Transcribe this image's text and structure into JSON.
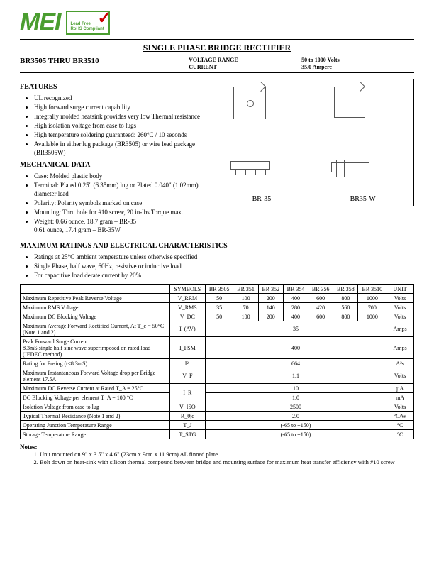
{
  "logo_text": "MEI",
  "badge_line1": "Lead Free",
  "badge_line2": "RoHS Compliant",
  "title": "SINGLE PHASE BRIDGE RECTIFIER",
  "partnum": "BR3505   THRU   BR3510",
  "range_labels": {
    "l1": "VOLTAGE RANGE",
    "l2": "CURRENT"
  },
  "range_values": {
    "v1": "50 to 1000 Volts",
    "v2": "35.0 Ampere"
  },
  "features_hdr": "FEATURES",
  "features": [
    "UL recognized",
    "High forward surge current capability",
    "Integrally molded heatsink provides very low Thermal resistance",
    "High isolation voltage from case to lugs",
    "High temperature soldering guaranteed: 260°C / 10 seconds",
    "Available in either lug package (BR3505) or wire lead package (BR3505W)"
  ],
  "mech_hdr": "MECHANICAL DATA",
  "mech": [
    "Case:  Molded plastic body",
    "Terminal:  Plated 0.25\" (6.35mm) lug or Plated 0.040\" (1.02mm) diameter lead",
    "Polarity:  Polarity symbols marked on case",
    "Mounting:  Thru hole for #10 screw, 20 in-lbs Torque max.",
    "Weight:  0.66 ounce, 18.7 gram – BR-35\n              0.61 ounce, 17.4 gram – BR-35W"
  ],
  "pkg_labels": {
    "a": "BR-35",
    "b": "BR35-W"
  },
  "max_hdr": "MAXIMUM RATINGS AND ELECTRICAL CHARACTERISTICS",
  "max_notes": [
    "Ratings at 25°C ambient temperature unless otherwise specified",
    "Single Phase, half wave, 60Hz, resistive or inductive load",
    "For capacitive load derate current by 20%"
  ],
  "table": {
    "head_symbols": "SYMBOLS",
    "head_parts": [
      "BR 3505",
      "BR 351",
      "BR 352",
      "BR 354",
      "BR 356",
      "BR 358",
      "BR 3510"
    ],
    "head_unit": "UNIT",
    "rows": [
      {
        "label": "Maximum Repetitive Peak Reverse Voltage",
        "sym": "V_RRM",
        "vals": [
          "50",
          "100",
          "200",
          "400",
          "600",
          "800",
          "1000"
        ],
        "unit": "Volts"
      },
      {
        "label": "Maximum RMS Voltage",
        "sym": "V_RMS",
        "vals": [
          "35",
          "70",
          "140",
          "280",
          "420",
          "560",
          "700"
        ],
        "unit": "Volts"
      },
      {
        "label": "Maximum DC Blocking Voltage",
        "sym": "V_DC",
        "vals": [
          "50",
          "100",
          "200",
          "400",
          "600",
          "800",
          "1000"
        ],
        "unit": "Volts"
      },
      {
        "label": "Maximum Average Forward Rectified Current, At T_c = 50°C (Note 1 and 2)",
        "sym": "I_(AV)",
        "span": "35",
        "unit": "Amps"
      },
      {
        "label": "Peak Forward Surge Current\n8.3mS single half sine wave superimposed on rated load (JEDEC method)",
        "sym": "I_FSM",
        "span": "400",
        "unit": "Amps"
      },
      {
        "label": "Rating for Fusing (t<8.3mS)",
        "sym": "I²t",
        "span": "664",
        "unit": "A²s"
      },
      {
        "label": "Maximum Instantaneous Forward Voltage drop per Bridge element 17.5A",
        "sym": "V_F",
        "span": "1.1",
        "unit": "Volts"
      },
      {
        "label": "Maximum DC Reverse Current at Rated        T_A = 25°C",
        "sym": "I_R",
        "span": "10",
        "unit": "µA",
        "rowspan_sym": 2
      },
      {
        "label": "DC Blocking Voltage per element                   T_A = 100 °C",
        "span": "1.0",
        "unit": "mA",
        "skip_sym": true
      },
      {
        "label": "Isolation Voltage from case to lug",
        "sym": "V_ISO",
        "span": "2500",
        "unit": "Volts"
      },
      {
        "label": "Typical Thermal Resistance (Note 1 and 2)",
        "sym": "R_θjc",
        "span": "2.0",
        "unit": "°C/W"
      },
      {
        "label": "Operating Junction Temperature Range",
        "sym": "T_J",
        "span": "(-65 to +150)",
        "unit": "°C"
      },
      {
        "label": "Storage Temperature Range",
        "sym": "T_STG",
        "span": "(-65 to +150)",
        "unit": "°C"
      }
    ]
  },
  "notes_hdr": "Notes:",
  "notes": [
    "Unit mounted on 9\" x 3.5\" x 4.6\" (23cm x 9cm x 11.9cm) AL finned plate",
    "Bolt down on heat-sink with silicon thermal compound between bridge and mounting surface for maximum heat transfer efficiency with #10 screw"
  ]
}
